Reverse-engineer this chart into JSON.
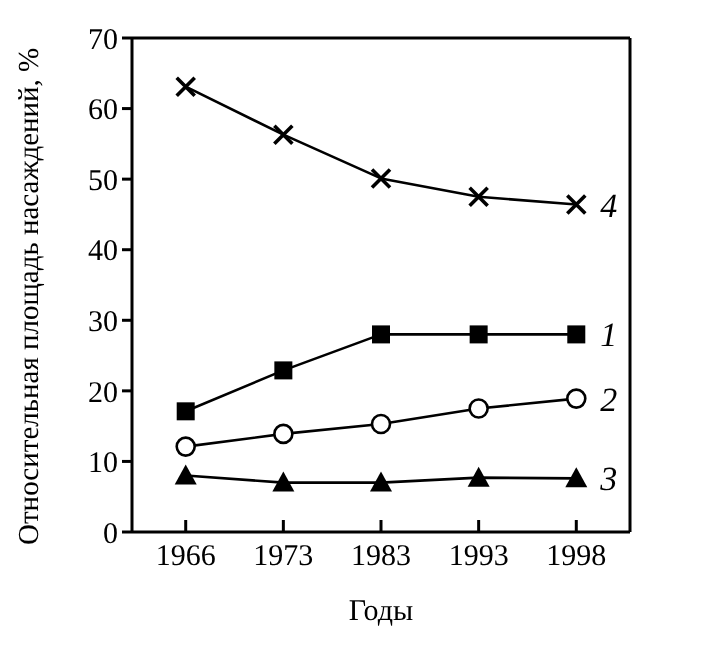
{
  "chart_data": {
    "type": "line",
    "xlabel": "Годы",
    "ylabel": "Относительная площадь насаждений, %",
    "categories": [
      "1966",
      "1973",
      "1983",
      "1993",
      "1998"
    ],
    "ylim": [
      0,
      70
    ],
    "yticks": [
      0,
      10,
      20,
      30,
      40,
      50,
      60,
      70
    ],
    "line_style": "solid",
    "series": [
      {
        "name": "4",
        "color": "#000000",
        "marker": "cross",
        "values": [
          63.1,
          56.3,
          50.1,
          47.5,
          46.4
        ]
      },
      {
        "name": "1",
        "color": "#000000",
        "marker": "square",
        "values": [
          17.1,
          22.9,
          28.0,
          28.0,
          28.0
        ]
      },
      {
        "name": "2",
        "color": "#000000",
        "marker": "circle",
        "values": [
          12.1,
          13.9,
          15.3,
          17.5,
          18.9
        ]
      },
      {
        "name": "3",
        "color": "#000000",
        "marker": "triangle",
        "values": [
          8.0,
          7.0,
          7.0,
          7.7,
          7.6
        ]
      }
    ]
  }
}
